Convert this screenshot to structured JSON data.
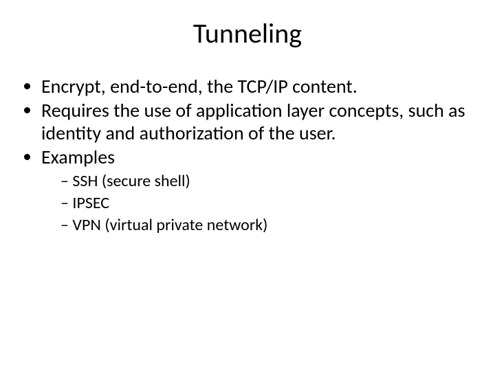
{
  "slide": {
    "title": "Tunneling",
    "title_fontsize": 40,
    "title_color": "#000000",
    "background_color": "#ffffff",
    "body_fontsize_l1": 28,
    "body_fontsize_l2": 24,
    "body_color": "#000000",
    "bullets": [
      {
        "text": "Encrypt, end-to-end, the TCP/IP content."
      },
      {
        "text": "Requires the use of application layer concepts, such as identity and authorization of the user."
      },
      {
        "text": "Examples"
      }
    ],
    "sub_bullets": [
      {
        "text": "SSH (secure shell)"
      },
      {
        "text": "IPSEC"
      },
      {
        "text": "VPN (virtual private network)"
      }
    ],
    "line_height_l1": 1.18,
    "line_height_l2": 1.25
  }
}
